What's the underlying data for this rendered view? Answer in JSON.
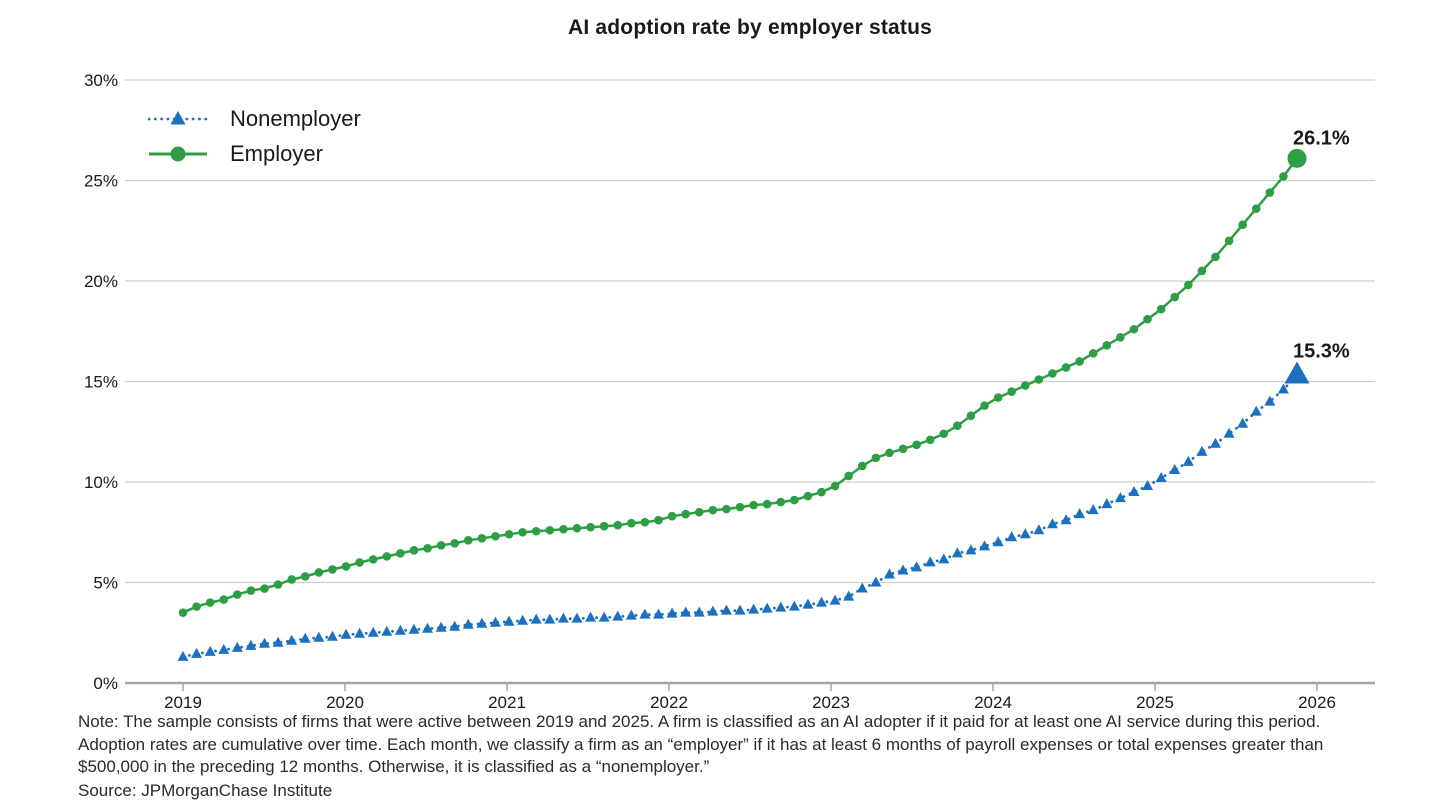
{
  "chart_data": {
    "type": "line",
    "title": "AI adoption rate by employer status",
    "frequency": "monthly",
    "x_start": "2019-01",
    "x_end": "2025-11",
    "x_tick_labels": [
      "2019",
      "2020",
      "2021",
      "2022",
      "2023",
      "2024",
      "2025",
      "2026"
    ],
    "y_tick_values": [
      0,
      5,
      10,
      15,
      20,
      25,
      30
    ],
    "y_tick_labels": [
      "0%",
      "5%",
      "10%",
      "15%",
      "20%",
      "25%",
      "30%"
    ],
    "ylim": [
      0,
      30
    ],
    "grid": "horizontal",
    "legend_position": "top-left-inside",
    "colors": {
      "nonemployer": "#1c70c0",
      "employer": "#2e9e44",
      "grid": "#cdcdcd",
      "axis": "#a3a3a3",
      "text": "#1a1a1a"
    },
    "series": [
      {
        "name": "Nonemployer",
        "marker": "triangle",
        "line_style": "dotted",
        "color": "#1c70c0",
        "end_label": "15.3%",
        "values": [
          1.3,
          1.45,
          1.55,
          1.65,
          1.75,
          1.85,
          1.95,
          2.0,
          2.1,
          2.2,
          2.25,
          2.3,
          2.4,
          2.45,
          2.5,
          2.55,
          2.6,
          2.65,
          2.7,
          2.75,
          2.8,
          2.9,
          2.95,
          3.0,
          3.05,
          3.1,
          3.15,
          3.15,
          3.2,
          3.2,
          3.25,
          3.25,
          3.3,
          3.35,
          3.4,
          3.4,
          3.45,
          3.5,
          3.5,
          3.55,
          3.6,
          3.6,
          3.65,
          3.7,
          3.75,
          3.8,
          3.9,
          4.0,
          4.1,
          4.3,
          4.7,
          5.0,
          5.4,
          5.6,
          5.75,
          6.0,
          6.15,
          6.45,
          6.6,
          6.8,
          7.0,
          7.25,
          7.4,
          7.6,
          7.9,
          8.1,
          8.4,
          8.6,
          8.9,
          9.2,
          9.5,
          9.8,
          10.2,
          10.6,
          11.0,
          11.5,
          11.9,
          12.4,
          12.9,
          13.5,
          14.0,
          14.6,
          15.3
        ]
      },
      {
        "name": "Employer",
        "marker": "circle",
        "line_style": "solid",
        "color": "#2e9e44",
        "end_label": "26.1%",
        "values": [
          3.5,
          3.8,
          4.0,
          4.15,
          4.4,
          4.6,
          4.7,
          4.9,
          5.15,
          5.3,
          5.5,
          5.65,
          5.8,
          6.0,
          6.15,
          6.3,
          6.45,
          6.6,
          6.7,
          6.85,
          6.95,
          7.1,
          7.2,
          7.3,
          7.4,
          7.5,
          7.55,
          7.6,
          7.65,
          7.7,
          7.75,
          7.8,
          7.85,
          7.95,
          8.0,
          8.1,
          8.3,
          8.4,
          8.5,
          8.6,
          8.65,
          8.75,
          8.85,
          8.9,
          9.0,
          9.1,
          9.3,
          9.5,
          9.8,
          10.3,
          10.8,
          11.2,
          11.45,
          11.65,
          11.85,
          12.1,
          12.4,
          12.8,
          13.3,
          13.8,
          14.2,
          14.5,
          14.8,
          15.1,
          15.4,
          15.7,
          16.0,
          16.4,
          16.8,
          17.2,
          17.6,
          18.1,
          18.6,
          19.2,
          19.8,
          20.5,
          21.2,
          22.0,
          22.8,
          23.6,
          24.4,
          25.2,
          26.1
        ]
      }
    ],
    "note": "Note: The sample consists of firms that were active between 2019 and 2025. A firm is classified as an AI adopter if it paid for at least one AI service during this period. Adoption rates are cumulative over time. Each month, we classify a firm as an “employer” if it has at least 6 months of payroll expenses or total expenses greater than $500,000 in the preceding 12 months. Otherwise, it is classified as a “nonemployer.”",
    "source": "Source: JPMorganChase Institute"
  }
}
